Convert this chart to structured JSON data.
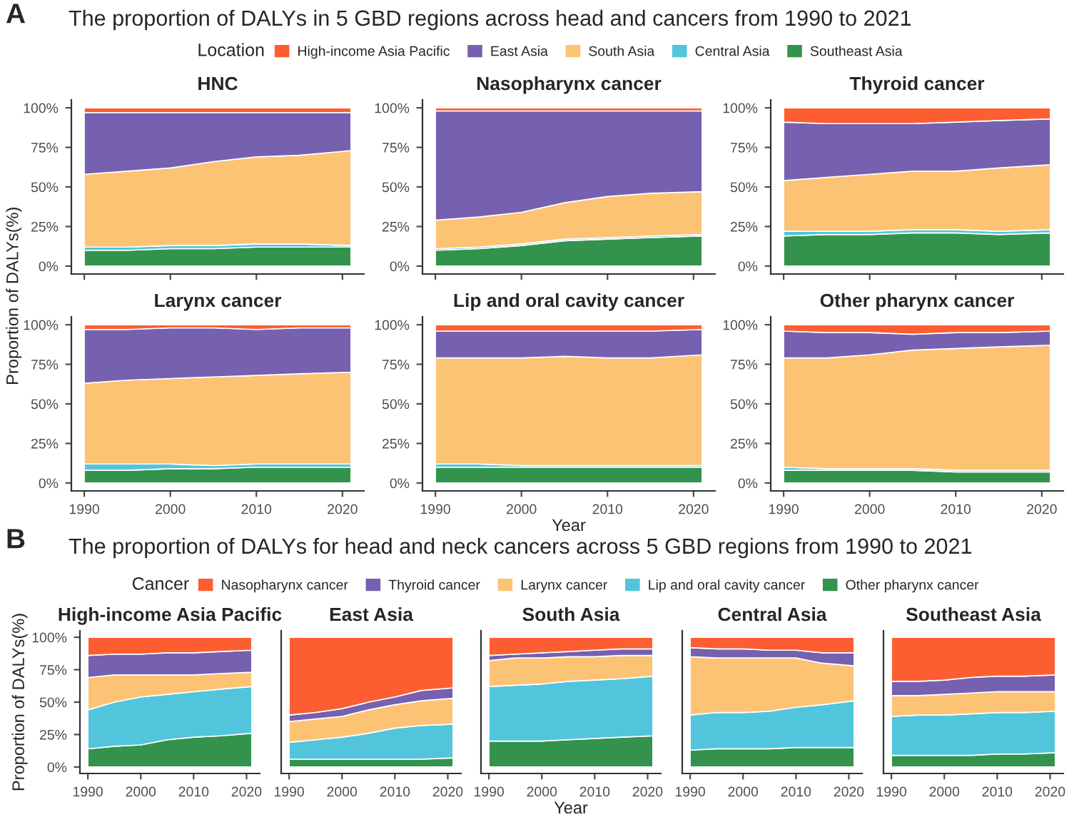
{
  "chart_data": [
    {
      "type": "area",
      "stacked": true,
      "title": "HNC",
      "annotations": [
        "A",
        "The proportion of DALYs in 5 GBD regions across head and cancers from 1990 to 2021"
      ],
      "legend": "top",
      "legend_title": "Location",
      "x": [
        1990,
        1995,
        2000,
        2005,
        2010,
        2015,
        2021
      ],
      "xlim": [
        1988.5,
        2022.5
      ],
      "xticks": [
        1990,
        2000,
        2010,
        2020
      ],
      "ylim": [
        -5,
        105
      ],
      "yticks": [
        {
          "value": 0,
          "label": "0%"
        },
        {
          "value": 25,
          "label": "25%"
        },
        {
          "value": 50,
          "label": "50%"
        },
        {
          "value": 75,
          "label": "75%"
        },
        {
          "value": 100,
          "label": "100%"
        }
      ],
      "tick_labels": "y",
      "grid": false,
      "series": [
        {
          "name": "Southeast Asia",
          "color": "#33934d",
          "values": [
            10,
            10,
            11,
            11,
            12,
            12,
            12
          ]
        },
        {
          "name": "Central Asia",
          "color": "#52c5dc",
          "values": [
            2,
            2,
            2,
            2,
            2,
            2,
            1
          ]
        },
        {
          "name": "South Asia",
          "color": "#fcc375",
          "values": [
            46,
            48,
            49,
            53,
            55,
            56,
            60
          ]
        },
        {
          "name": "East Asia",
          "color": "#7660b0",
          "values": [
            39,
            37,
            35,
            31,
            28,
            27,
            24
          ]
        },
        {
          "name": "High-income Asia Pacific",
          "color": "#fd5e31",
          "values": [
            3,
            3,
            3,
            3,
            3,
            3,
            3
          ]
        }
      ]
    },
    {
      "type": "area",
      "stacked": true,
      "title": "Nasopharynx cancer",
      "x": [
        1990,
        1995,
        2000,
        2005,
        2010,
        2015,
        2021
      ],
      "xlim": [
        1988.5,
        2022.5
      ],
      "xticks": [
        1990,
        2000,
        2010,
        2020
      ],
      "ylim": [
        -5,
        105
      ],
      "yticks": [
        {
          "value": 0,
          "label": "0%"
        },
        {
          "value": 25,
          "label": "25%"
        },
        {
          "value": 50,
          "label": "50%"
        },
        {
          "value": 75,
          "label": "75%"
        },
        {
          "value": 100,
          "label": "100%"
        }
      ],
      "tick_labels": "y",
      "grid": false,
      "series": [
        {
          "color": "#33934d",
          "values": [
            10,
            11,
            13,
            16,
            17,
            18,
            19
          ]
        },
        {
          "color": "#52c5dc",
          "values": [
            1,
            1,
            1,
            1,
            1,
            1,
            1
          ]
        },
        {
          "color": "#fcc375",
          "values": [
            18,
            19,
            20,
            23,
            26,
            27,
            27
          ]
        },
        {
          "color": "#7660b0",
          "values": [
            69,
            67,
            64,
            58,
            54,
            52,
            51
          ]
        },
        {
          "color": "#fd5e31",
          "values": [
            2,
            2,
            2,
            2,
            2,
            2,
            2
          ]
        }
      ]
    },
    {
      "type": "area",
      "stacked": true,
      "title": "Thyroid cancer",
      "x": [
        1990,
        1995,
        2000,
        2005,
        2010,
        2015,
        2021
      ],
      "xlim": [
        1988.5,
        2022.5
      ],
      "xticks": [
        1990,
        2000,
        2010,
        2020
      ],
      "ylim": [
        -5,
        105
      ],
      "yticks": [
        {
          "value": 0,
          "label": "0%"
        },
        {
          "value": 25,
          "label": "25%"
        },
        {
          "value": 50,
          "label": "50%"
        },
        {
          "value": 75,
          "label": "75%"
        },
        {
          "value": 100,
          "label": "100%"
        }
      ],
      "tick_labels": "y",
      "grid": false,
      "series": [
        {
          "color": "#33934d",
          "values": [
            19,
            20,
            20,
            21,
            21,
            20,
            21
          ]
        },
        {
          "color": "#52c5dc",
          "values": [
            3,
            2,
            2,
            2,
            2,
            2,
            2
          ]
        },
        {
          "color": "#fcc375",
          "values": [
            32,
            34,
            36,
            37,
            37,
            40,
            41
          ]
        },
        {
          "color": "#7660b0",
          "values": [
            37,
            34,
            32,
            30,
            31,
            30,
            29
          ]
        },
        {
          "color": "#fd5e31",
          "values": [
            9,
            10,
            10,
            10,
            9,
            8,
            7
          ]
        }
      ]
    },
    {
      "type": "area",
      "stacked": true,
      "title": "Larynx cancer",
      "ylabel": "Proportion of DALYs(%)",
      "x": [
        1990,
        1995,
        2000,
        2005,
        2010,
        2015,
        2021
      ],
      "xlim": [
        1988.5,
        2022.5
      ],
      "xticks": [
        1990,
        2000,
        2010,
        2020
      ],
      "ylim": [
        -5,
        105
      ],
      "yticks": [
        {
          "value": 0,
          "label": "0%"
        },
        {
          "value": 25,
          "label": "25%"
        },
        {
          "value": 50,
          "label": "50%"
        },
        {
          "value": 75,
          "label": "75%"
        },
        {
          "value": 100,
          "label": "100%"
        }
      ],
      "grid": false,
      "series": [
        {
          "color": "#33934d",
          "values": [
            8,
            8,
            9,
            9,
            10,
            10,
            10
          ]
        },
        {
          "color": "#52c5dc",
          "values": [
            4,
            4,
            3,
            2,
            2,
            2,
            2
          ]
        },
        {
          "color": "#fcc375",
          "values": [
            51,
            53,
            54,
            56,
            56,
            57,
            58
          ]
        },
        {
          "color": "#7660b0",
          "values": [
            34,
            32,
            32,
            31,
            29,
            29,
            28
          ]
        },
        {
          "color": "#fd5e31",
          "values": [
            3,
            3,
            2,
            2,
            3,
            2,
            2
          ]
        }
      ]
    },
    {
      "type": "area",
      "stacked": true,
      "title": "Lip and oral cavity cancer",
      "xlabel": "Year",
      "x": [
        1990,
        1995,
        2000,
        2005,
        2010,
        2015,
        2021
      ],
      "xlim": [
        1988.5,
        2022.5
      ],
      "xticks": [
        1990,
        2000,
        2010,
        2020
      ],
      "ylim": [
        -5,
        105
      ],
      "yticks": [
        {
          "value": 0,
          "label": "0%"
        },
        {
          "value": 25,
          "label": "25%"
        },
        {
          "value": 50,
          "label": "50%"
        },
        {
          "value": 75,
          "label": "75%"
        },
        {
          "value": 100,
          "label": "100%"
        }
      ],
      "grid": false,
      "series": [
        {
          "color": "#33934d",
          "values": [
            10,
            10,
            10,
            10,
            10,
            10,
            10
          ]
        },
        {
          "color": "#52c5dc",
          "values": [
            2,
            2,
            1,
            1,
            1,
            1,
            1
          ]
        },
        {
          "color": "#fcc375",
          "values": [
            67,
            67,
            68,
            69,
            68,
            68,
            70
          ]
        },
        {
          "color": "#7660b0",
          "values": [
            17,
            17,
            17,
            16,
            17,
            17,
            16
          ]
        },
        {
          "color": "#fd5e31",
          "values": [
            4,
            4,
            4,
            4,
            4,
            4,
            3
          ]
        }
      ]
    },
    {
      "type": "area",
      "stacked": true,
      "title": "Other pharynx cancer",
      "x": [
        1990,
        1995,
        2000,
        2005,
        2010,
        2015,
        2021
      ],
      "xlim": [
        1988.5,
        2022.5
      ],
      "xticks": [
        1990,
        2000,
        2010,
        2020
      ],
      "ylim": [
        -5,
        105
      ],
      "yticks": [
        {
          "value": 0,
          "label": "0%"
        },
        {
          "value": 25,
          "label": "25%"
        },
        {
          "value": 50,
          "label": "50%"
        },
        {
          "value": 75,
          "label": "75%"
        },
        {
          "value": 100,
          "label": "100%"
        }
      ],
      "grid": false,
      "series": [
        {
          "color": "#33934d",
          "values": [
            8,
            8,
            8,
            8,
            7,
            7,
            7
          ]
        },
        {
          "color": "#52c5dc",
          "values": [
            2,
            1,
            1,
            1,
            1,
            1,
            1
          ]
        },
        {
          "color": "#fcc375",
          "values": [
            69,
            70,
            72,
            75,
            77,
            78,
            79
          ]
        },
        {
          "color": "#7660b0",
          "values": [
            17,
            16,
            14,
            10,
            10,
            9,
            9
          ]
        },
        {
          "color": "#fd5e31",
          "values": [
            4,
            5,
            5,
            6,
            5,
            5,
            4
          ]
        }
      ]
    },
    {
      "type": "area",
      "stacked": true,
      "title": "High-income Asia Pacific",
      "annotations": [
        "B",
        "The proportion of DALYs for head and neck cancers across 5 GBD regions from 1990 to 2021"
      ],
      "legend": "top",
      "legend_title": "Cancer",
      "ylabel": "Proportion of DALYs(%)",
      "x": [
        1990,
        1995,
        2000,
        2005,
        2010,
        2015,
        2021
      ],
      "xlim": [
        1988.5,
        2022.5
      ],
      "xticks": [
        1990,
        2000,
        2010,
        2020
      ],
      "ylim": [
        -5,
        105
      ],
      "yticks": [
        {
          "value": 0,
          "label": "0%"
        },
        {
          "value": 25,
          "label": "25%"
        },
        {
          "value": 50,
          "label": "50%"
        },
        {
          "value": 75,
          "label": "75%"
        },
        {
          "value": 100,
          "label": "100%"
        }
      ],
      "grid": false,
      "series": [
        {
          "name": "Other pharynx cancer",
          "color": "#33934d",
          "values": [
            14,
            16,
            17,
            21,
            23,
            24,
            26
          ]
        },
        {
          "name": "Lip and oral cavity cancer",
          "color": "#52c5dc",
          "values": [
            30,
            34,
            37,
            35,
            35,
            36,
            36
          ]
        },
        {
          "name": "Larynx cancer",
          "color": "#fcc375",
          "values": [
            25,
            21,
            17,
            15,
            13,
            12,
            11
          ]
        },
        {
          "name": "Thyroid cancer",
          "color": "#7660b0",
          "values": [
            17,
            16,
            16,
            17,
            17,
            17,
            17
          ]
        },
        {
          "name": "Nasopharynx cancer",
          "color": "#fd5e31",
          "values": [
            14,
            13,
            13,
            12,
            12,
            11,
            10
          ]
        }
      ]
    },
    {
      "type": "area",
      "stacked": true,
      "title": "East Asia",
      "x": [
        1990,
        1995,
        2000,
        2005,
        2010,
        2015,
        2021
      ],
      "xlim": [
        1988.5,
        2022.5
      ],
      "xticks": [
        1990,
        2000,
        2010,
        2020
      ],
      "ylim": [
        -5,
        105
      ],
      "tick_labels": "x",
      "grid": false,
      "series": [
        {
          "color": "#33934d",
          "values": [
            6,
            6,
            6,
            6,
            6,
            6,
            7
          ]
        },
        {
          "color": "#52c5dc",
          "values": [
            13,
            15,
            17,
            20,
            24,
            26,
            26
          ]
        },
        {
          "color": "#fcc375",
          "values": [
            16,
            16,
            16,
            18,
            18,
            19,
            20
          ]
        },
        {
          "color": "#7660b0",
          "values": [
            5,
            5,
            6,
            6,
            6,
            8,
            8
          ]
        },
        {
          "color": "#fd5e31",
          "values": [
            60,
            58,
            55,
            50,
            46,
            41,
            39
          ]
        }
      ]
    },
    {
      "type": "area",
      "stacked": true,
      "title": "South Asia",
      "xlabel": "Year",
      "x": [
        1990,
        1995,
        2000,
        2005,
        2010,
        2015,
        2021
      ],
      "xlim": [
        1988.5,
        2022.5
      ],
      "xticks": [
        1990,
        2000,
        2010,
        2020
      ],
      "ylim": [
        -5,
        105
      ],
      "tick_labels": "x",
      "grid": false,
      "series": [
        {
          "color": "#33934d",
          "values": [
            20,
            20,
            20,
            21,
            22,
            23,
            24
          ]
        },
        {
          "color": "#52c5dc",
          "values": [
            42,
            43,
            44,
            45,
            45,
            45,
            46
          ]
        },
        {
          "color": "#fcc375",
          "values": [
            20,
            21,
            20,
            19,
            18,
            18,
            16
          ]
        },
        {
          "color": "#7660b0",
          "values": [
            4,
            3,
            4,
            4,
            5,
            5,
            5
          ]
        },
        {
          "color": "#fd5e31",
          "values": [
            14,
            13,
            12,
            11,
            10,
            9,
            9
          ]
        }
      ]
    },
    {
      "type": "area",
      "stacked": true,
      "title": "Central Asia",
      "x": [
        1990,
        1995,
        2000,
        2005,
        2010,
        2015,
        2021
      ],
      "xlim": [
        1988.5,
        2022.5
      ],
      "xticks": [
        1990,
        2000,
        2010,
        2020
      ],
      "ylim": [
        -5,
        105
      ],
      "tick_labels": "x",
      "grid": false,
      "series": [
        {
          "color": "#33934d",
          "values": [
            13,
            14,
            14,
            14,
            15,
            15,
            15
          ]
        },
        {
          "color": "#52c5dc",
          "values": [
            27,
            28,
            28,
            29,
            31,
            33,
            36
          ]
        },
        {
          "color": "#fcc375",
          "values": [
            45,
            42,
            42,
            41,
            38,
            32,
            27
          ]
        },
        {
          "color": "#7660b0",
          "values": [
            7,
            7,
            7,
            6,
            6,
            8,
            10
          ]
        },
        {
          "color": "#fd5e31",
          "values": [
            8,
            9,
            9,
            10,
            10,
            12,
            12
          ]
        }
      ]
    },
    {
      "type": "area",
      "stacked": true,
      "title": "Southeast Asia",
      "x": [
        1990,
        1995,
        2000,
        2005,
        2010,
        2015,
        2021
      ],
      "xlim": [
        1988.5,
        2022.5
      ],
      "xticks": [
        1990,
        2000,
        2010,
        2020
      ],
      "ylim": [
        -5,
        105
      ],
      "tick_labels": "x",
      "grid": false,
      "series": [
        {
          "color": "#33934d",
          "values": [
            9,
            9,
            9,
            9,
            10,
            10,
            11
          ]
        },
        {
          "color": "#52c5dc",
          "values": [
            30,
            31,
            31,
            32,
            32,
            32,
            32
          ]
        },
        {
          "color": "#fcc375",
          "values": [
            16,
            15,
            16,
            16,
            16,
            16,
            15
          ]
        },
        {
          "color": "#7660b0",
          "values": [
            11,
            11,
            11,
            12,
            12,
            12,
            13
          ]
        },
        {
          "color": "#fd5e31",
          "values": [
            34,
            34,
            33,
            31,
            30,
            30,
            29
          ]
        }
      ]
    }
  ]
}
